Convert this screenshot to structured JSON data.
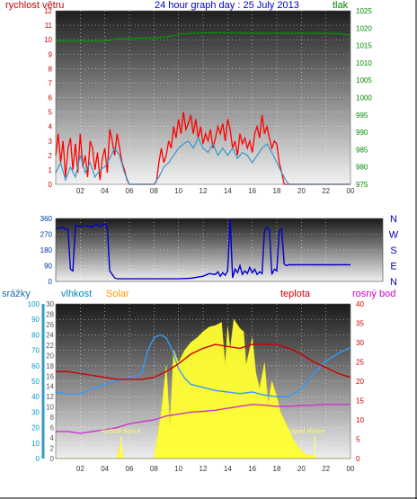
{
  "chart_data": [
    {
      "type": "line",
      "title": "24 hour graph day : 25 July 2013",
      "left_label": "rychlost větru",
      "right_label": "tlak",
      "left_ticks": [
        "0",
        "1",
        "2",
        "3",
        "4",
        "5",
        "6",
        "7",
        "8",
        "9",
        "10",
        "11",
        "12"
      ],
      "right_ticks": [
        "975",
        "980",
        "985",
        "990",
        "995",
        "1000",
        "1005",
        "1010",
        "1015",
        "1020",
        "1025"
      ],
      "x_ticks": [
        "02",
        "04",
        "06",
        "08",
        "10",
        "12",
        "14",
        "16",
        "18",
        "20",
        "22",
        "00"
      ],
      "ylim_left": [
        0,
        12
      ],
      "ylim_right": [
        975,
        1025
      ],
      "colors": {
        "gust": "#ff0000",
        "speed": "#3399cc",
        "pressure": "#009900",
        "left_axis": "#cc0000",
        "right_axis": "#008800",
        "title": "#0000cc"
      },
      "series": [
        {
          "key": "gust",
          "x": [
            0,
            0.2,
            0.4,
            0.6,
            0.8,
            1,
            1.2,
            1.4,
            1.6,
            1.8,
            2,
            2.2,
            2.4,
            2.6,
            2.8,
            3,
            3.2,
            3.4,
            3.6,
            3.8,
            4,
            4.2,
            4.4,
            4.6,
            4.8,
            5,
            5.2,
            5.4,
            5.6,
            5.8,
            6,
            7,
            8,
            8.2,
            8.4,
            8.6,
            8.8,
            9,
            9.2,
            9.4,
            9.6,
            9.8,
            10,
            10.2,
            10.4,
            10.6,
            10.8,
            11,
            11.2,
            11.4,
            11.6,
            11.8,
            12,
            12.2,
            12.4,
            12.6,
            12.8,
            13,
            13.2,
            13.4,
            13.6,
            13.8,
            14,
            14.2,
            14.4,
            14.6,
            14.8,
            15,
            15.2,
            15.4,
            15.6,
            15.8,
            16,
            16.2,
            16.4,
            16.6,
            16.8,
            17,
            17.2,
            17.4,
            17.6,
            17.8,
            18,
            18.2,
            18.4,
            18.6,
            19,
            20,
            21,
            22,
            23,
            24
          ],
          "values": [
            2,
            3.5,
            1.5,
            3,
            0.5,
            2.5,
            3.2,
            1,
            2.8,
            0.8,
            3.5,
            1.2,
            2,
            0.5,
            3,
            2.5,
            1,
            2.2,
            0.3,
            1.8,
            2.5,
            0.8,
            3.8,
            3,
            2,
            3.5,
            2.5,
            1.5,
            1,
            0.3,
            0,
            0,
            0,
            0.2,
            1.5,
            2.5,
            1.5,
            2,
            3,
            2.5,
            4,
            3.2,
            4.5,
            3.5,
            5,
            3.8,
            4.2,
            4.8,
            3.5,
            4.5,
            3.2,
            4,
            2.8,
            3.5,
            3,
            3.8,
            2.5,
            3.2,
            4,
            3.5,
            4.2,
            3,
            4.5,
            3.8,
            2.5,
            3,
            2,
            3.5,
            2.8,
            3.2,
            2.5,
            3,
            2.2,
            3.5,
            4,
            3.2,
            4.8,
            3.5,
            4,
            3.2,
            2.5,
            3,
            2.8,
            1.5,
            0.8,
            0,
            0,
            0,
            0,
            0,
            0,
            0
          ]
        },
        {
          "key": "speed",
          "x": [
            0,
            0.4,
            0.8,
            1.2,
            1.6,
            2,
            2.4,
            2.8,
            3.2,
            3.6,
            4,
            4.4,
            4.8,
            5.2,
            5.6,
            6,
            7,
            8,
            8.4,
            8.8,
            9.2,
            9.6,
            10,
            10.4,
            10.8,
            11.2,
            11.6,
            12,
            12.4,
            12.8,
            13.2,
            13.6,
            14,
            14.4,
            14.8,
            15.2,
            15.6,
            16,
            16.4,
            16.8,
            17.2,
            17.6,
            18,
            18.4,
            18.8,
            19,
            20,
            21,
            22,
            23,
            24
          ],
          "values": [
            0.8,
            1.5,
            0.3,
            1.2,
            0.5,
            2,
            0.8,
            1.5,
            0.5,
            1,
            1.2,
            1.8,
            2.5,
            2,
            0.8,
            0,
            0,
            0,
            0.5,
            1.2,
            1.5,
            2,
            2.5,
            2.8,
            3,
            2.5,
            3.2,
            2.5,
            2.2,
            2.8,
            2,
            2.5,
            2,
            2.5,
            1.8,
            2.2,
            2,
            1.5,
            2,
            2.5,
            2.8,
            2.2,
            1.5,
            0.8,
            0.2,
            0,
            0,
            0,
            0,
            0,
            0
          ]
        },
        {
          "key": "pressure",
          "x": [
            0,
            2,
            4,
            4.5,
            5,
            6,
            8,
            9,
            9.5,
            10,
            11,
            12,
            13,
            14,
            16,
            18,
            20,
            22,
            23,
            23.5,
            24
          ],
          "values": [
            1016.2,
            1016.2,
            1016.2,
            1016.5,
            1016.9,
            1017.1,
            1017.2,
            1017.5,
            1017.8,
            1018.2,
            1018.5,
            1018.6,
            1018.7,
            1018.6,
            1018.5,
            1018.5,
            1018.5,
            1018.5,
            1018.4,
            1018.2,
            1018
          ]
        }
      ]
    },
    {
      "type": "line",
      "right_labels": [
        "N",
        "W",
        "S",
        "E",
        "N"
      ],
      "left_ticks": [
        "0",
        "90",
        "180",
        "270",
        "360"
      ],
      "ylim": [
        0,
        360
      ],
      "colors": {
        "direction": "#0000cc",
        "avg": "#3366ff"
      },
      "series": [
        {
          "key": "direction",
          "x": [
            0,
            0.5,
            1,
            1.2,
            1.4,
            1.6,
            2,
            2.5,
            3,
            3.2,
            3.4,
            3.6,
            3.8,
            4,
            4.2,
            4.4,
            4.6,
            4.8,
            5,
            6,
            8,
            9,
            10,
            11,
            12,
            12.5,
            13,
            13.2,
            13.4,
            13.6,
            13.8,
            14,
            14.2,
            14.4,
            14.6,
            14.8,
            15,
            15.2,
            15.4,
            15.6,
            15.8,
            16,
            16.2,
            16.4,
            16.6,
            16.8,
            17,
            17.2,
            17.4,
            17.6,
            17.8,
            18,
            18.2,
            18.4,
            18.6,
            18.8,
            19,
            20,
            22,
            24
          ],
          "values": [
            300,
            310,
            295,
            70,
            60,
            320,
            315,
            320,
            310,
            330,
            320,
            315,
            320,
            330,
            310,
            60,
            40,
            20,
            15,
            15,
            15,
            15,
            15,
            18,
            30,
            45,
            40,
            55,
            30,
            50,
            35,
            60,
            360,
            20,
            70,
            50,
            90,
            40,
            60,
            45,
            80,
            50,
            70,
            40,
            55,
            45,
            290,
            310,
            300,
            40,
            70,
            60,
            290,
            300,
            100,
            90,
            95,
            95,
            95,
            95
          ]
        }
      ]
    },
    {
      "type": "area",
      "series_labels": {
        "rain": "srážky",
        "humidity": "vlhkost",
        "solar": "Solar",
        "temp": "teplota",
        "dew": "rosný bod"
      },
      "annotations": [
        "východ slunce",
        "západ slunce"
      ],
      "left_ticks_humidity": [
        "0",
        "10",
        "20",
        "30",
        "40",
        "50",
        "60",
        "70",
        "80",
        "90",
        "100"
      ],
      "left_ticks_rain": [
        "0",
        "2",
        "4",
        "6",
        "8",
        "10",
        "12",
        "14",
        "16",
        "18",
        "20",
        "22",
        "24",
        "26",
        "28",
        "30"
      ],
      "right_ticks": [
        "0",
        "5",
        "10",
        "15",
        "20",
        "25",
        "30",
        "35",
        "40"
      ],
      "x_ticks": [
        "02",
        "04",
        "06",
        "08",
        "10",
        "12",
        "14",
        "16",
        "18",
        "20",
        "22",
        "00"
      ],
      "ylim_humidity": [
        0,
        100
      ],
      "ylim_temp": [
        0,
        40
      ],
      "colors": {
        "solar": "#ffff33",
        "humidity": "#3399ff",
        "temp": "#cc0000",
        "dew": "#cc33cc",
        "rain_axis": "#3399cc",
        "humidity_axis": "#0099cc",
        "solar_axis": "#ff9900",
        "temp_axis": "#cc0000",
        "dew_axis": "#cc00cc"
      },
      "series": [
        {
          "key": "humidity",
          "x": [
            0,
            1,
            2,
            3,
            4,
            5,
            6,
            7,
            7.5,
            8,
            8.5,
            9,
            9.5,
            10,
            10.5,
            11,
            11.5,
            12,
            13,
            14,
            15,
            16,
            17,
            18,
            19,
            20,
            21,
            22,
            23,
            24
          ],
          "values": [
            43,
            42,
            42,
            45,
            48,
            50,
            52,
            55,
            70,
            78,
            80,
            78,
            70,
            58,
            52,
            48,
            47,
            46,
            44,
            43,
            42,
            43,
            41,
            40,
            40,
            45,
            55,
            63,
            68,
            72
          ]
        },
        {
          "key": "temp",
          "x": [
            0,
            1,
            2,
            3,
            4,
            5,
            6,
            7,
            8,
            9,
            10,
            11,
            12,
            13,
            14,
            15,
            16,
            17,
            18,
            19,
            20,
            21,
            22,
            23,
            24
          ],
          "values": [
            22.5,
            22.5,
            22,
            21.5,
            21,
            20.5,
            20.5,
            20.5,
            21,
            22.5,
            24.5,
            27,
            28.5,
            29.5,
            29,
            28.5,
            29.5,
            29.5,
            29.5,
            28.5,
            27,
            25,
            23.5,
            22,
            21
          ]
        },
        {
          "key": "dew",
          "x": [
            0,
            1,
            2,
            3,
            4,
            5,
            6,
            7,
            8,
            9,
            10,
            11,
            12,
            13,
            14,
            15,
            16,
            17,
            18,
            19,
            20,
            21,
            22,
            23,
            24
          ],
          "values": [
            7,
            7,
            6.5,
            7,
            7.5,
            8,
            9,
            9.5,
            10,
            11,
            11.5,
            12,
            12.2,
            12.5,
            13,
            13.5,
            14,
            13.8,
            13.5,
            13.5,
            13.7,
            13.8,
            14,
            14,
            14
          ]
        },
        {
          "key": "solar",
          "x": [
            0,
            5,
            5.3,
            5.5,
            6,
            7,
            8,
            8.3,
            8.6,
            9,
            9.3,
            9.6,
            10,
            10.5,
            11,
            11.5,
            12,
            12.5,
            13,
            13.5,
            13.8,
            14,
            14.2,
            14.5,
            15,
            15.3,
            15.5,
            16,
            16.3,
            16.6,
            17,
            17.3,
            17.6,
            18,
            18.3,
            18.6,
            19,
            19.5,
            20,
            20.5,
            21,
            21.3,
            24
          ],
          "values": [
            0,
            0,
            10,
            0,
            0,
            0,
            0,
            15,
            30,
            60,
            20,
            70,
            62,
            70,
            75,
            78,
            82,
            85,
            86,
            88,
            60,
            85,
            70,
            90,
            84,
            82,
            60,
            78,
            55,
            45,
            62,
            35,
            50,
            40,
            30,
            25,
            18,
            10,
            5,
            2,
            2,
            0,
            0
          ]
        }
      ]
    }
  ]
}
